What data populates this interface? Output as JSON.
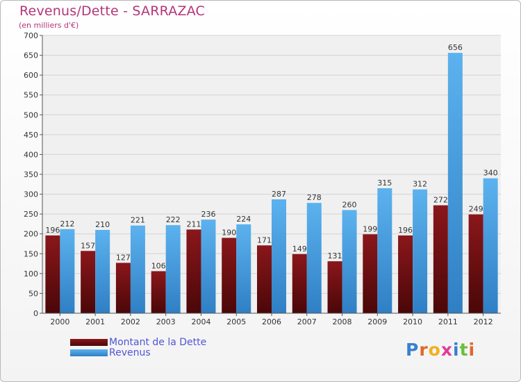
{
  "header": {
    "title": "Revenus/Dette - SARRAZAC",
    "subtitle": "(en milliers d'€)"
  },
  "legend": {
    "debt_label": "Montant de la Dette",
    "revenue_label": "Revenus"
  },
  "brand": {
    "name": "Proxiti"
  },
  "colors": {
    "debt": "#6b0f12",
    "revenue": "#4aa3e6",
    "title": "#b5337a",
    "legend_text": "#4f55d6"
  },
  "chart_data": {
    "type": "bar",
    "title": "Revenus/Dette - SARRAZAC",
    "subtitle": "(en milliers d'€)",
    "xlabel": "",
    "ylabel": "",
    "ylim": [
      0,
      700
    ],
    "yticks": [
      0,
      50,
      100,
      150,
      200,
      250,
      300,
      350,
      400,
      450,
      500,
      550,
      600,
      650,
      700
    ],
    "grid": true,
    "legend_position": "bottom-left",
    "categories": [
      "2000",
      "2001",
      "2002",
      "2003",
      "2004",
      "2005",
      "2006",
      "2007",
      "2008",
      "2009",
      "2010",
      "2011",
      "2012"
    ],
    "series": [
      {
        "name": "Montant de la Dette",
        "values": [
          196,
          157,
          127,
          106,
          211,
          190,
          171,
          149,
          131,
          199,
          196,
          272,
          249
        ]
      },
      {
        "name": "Revenus",
        "values": [
          212,
          210,
          221,
          222,
          236,
          224,
          287,
          278,
          260,
          315,
          312,
          656,
          340
        ]
      }
    ]
  }
}
